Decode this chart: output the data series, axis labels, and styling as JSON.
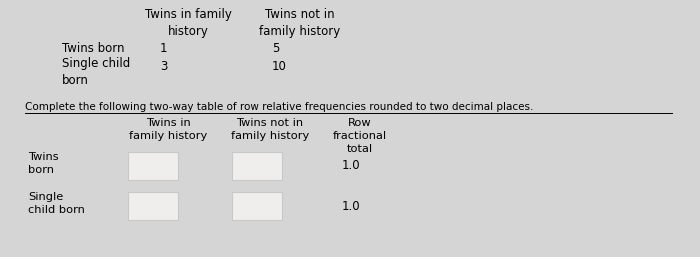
{
  "bg_color": "#d5d5d5",
  "top_table": {
    "col1_header": "Twins in family\nhistory",
    "col2_header": "Twins not in\nfamily history",
    "row1_label": "Twins born",
    "row1_val1": "1",
    "row1_val2": "5",
    "row2_label": "Single child\nborn",
    "row2_val1": "3",
    "row2_val2": "10"
  },
  "instruction": "Complete the following two-way table of row relative frequencies rounded to two decimal places.",
  "bottom_table": {
    "col1_header": "Twins in\nfamily history",
    "col2_header": "Twins not in\nfamily history",
    "col3_header": "Row\nfractional\ntotal",
    "row1_label": "Twins\nborn",
    "row2_label": "Single\nchild born",
    "row1_total": "1.0",
    "row2_total": "1.0"
  },
  "box_color": "#c8c8c8",
  "box_face": "#f0eeec"
}
